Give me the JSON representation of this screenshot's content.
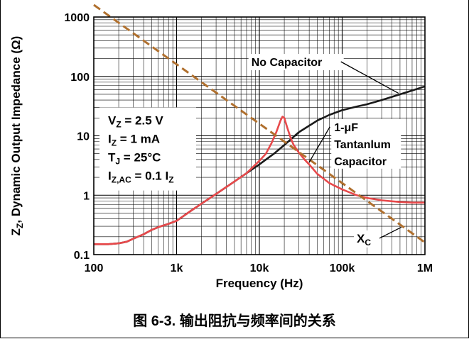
{
  "caption": "图 6-3. 输出阻抗与频率间的关系",
  "chart_data": {
    "type": "line",
    "xscale": "log",
    "yscale": "log",
    "xlim": [
      100,
      1000000
    ],
    "ylim": [
      0.1,
      1000
    ],
    "grid": true,
    "xlabel": "Frequency (Hz)",
    "ylabel": {
      "main": "Z",
      "sub": "Z",
      "rest": ", Dynamic Output Impedance (Ω)"
    },
    "xticks": [
      {
        "value": 100,
        "label": "100"
      },
      {
        "value": 1000,
        "label": "1k"
      },
      {
        "value": 10000,
        "label": "10k"
      },
      {
        "value": 100000,
        "label": "100k"
      },
      {
        "value": 1000000,
        "label": "1M"
      }
    ],
    "yticks": [
      {
        "value": 0.1,
        "label": "0.1"
      },
      {
        "value": 1,
        "label": "1"
      },
      {
        "value": 10,
        "label": "10"
      },
      {
        "value": 100,
        "label": "100"
      },
      {
        "value": 1000,
        "label": "1000"
      }
    ],
    "conditions": [
      {
        "main": "V",
        "sub": "Z",
        "rest": " = 2.5 V"
      },
      {
        "main": "I",
        "sub": "Z",
        "rest": " = 1 mA"
      },
      {
        "main": "T",
        "sub": "J",
        "rest": " = 25°C"
      },
      {
        "main": "I",
        "sub": "Z,AC",
        "rest": " = 0.1 I",
        "sub2": "Z"
      }
    ],
    "series": [
      {
        "name": "No Capacitor",
        "color": "#1a1a1a",
        "x": [
          100,
          150,
          200,
          250,
          300,
          400,
          500,
          600,
          700,
          800,
          1000,
          1500,
          2000,
          3000,
          5000,
          7000,
          10000,
          15000,
          20000,
          30000,
          50000,
          70000,
          100000,
          150000,
          200000,
          300000,
          500000,
          700000,
          1000000
        ],
        "y": [
          0.15,
          0.15,
          0.155,
          0.165,
          0.185,
          0.22,
          0.26,
          0.29,
          0.31,
          0.33,
          0.37,
          0.55,
          0.72,
          1.05,
          1.7,
          2.35,
          3.3,
          5.0,
          7.0,
          11.5,
          18.0,
          22.5,
          27.0,
          31.0,
          34.0,
          40.0,
          50.0,
          58.0,
          68.0
        ]
      },
      {
        "name": "1-μF Tantanlum Capacitor",
        "label": [
          "1-μF",
          "Tantanlum",
          "Capacitor"
        ],
        "color": "#e8494b",
        "x": [
          100,
          150,
          200,
          250,
          300,
          400,
          500,
          600,
          700,
          800,
          1000,
          1500,
          2000,
          3000,
          5000,
          7000,
          10000,
          12000,
          14000,
          16000,
          18000,
          19000,
          20000,
          21000,
          22000,
          24000,
          26000,
          30000,
          35000,
          40000,
          50000,
          70000,
          100000,
          150000,
          200000,
          300000,
          500000,
          700000,
          1000000
        ],
        "y": [
          0.15,
          0.15,
          0.155,
          0.165,
          0.185,
          0.22,
          0.26,
          0.29,
          0.31,
          0.33,
          0.37,
          0.55,
          0.72,
          1.05,
          1.7,
          2.35,
          3.8,
          5.0,
          7.5,
          11.5,
          18.0,
          21.0,
          20.0,
          16.0,
          13.0,
          9.0,
          7.0,
          5.2,
          4.0,
          3.3,
          2.3,
          1.6,
          1.25,
          1.0,
          0.9,
          0.82,
          0.77,
          0.75,
          0.75
        ]
      },
      {
        "name": "X",
        "label_sub": "C",
        "color": "#b0702e",
        "dashed": true,
        "x": [
          100,
          1000000
        ],
        "y": [
          1600,
          0.16
        ]
      }
    ]
  }
}
